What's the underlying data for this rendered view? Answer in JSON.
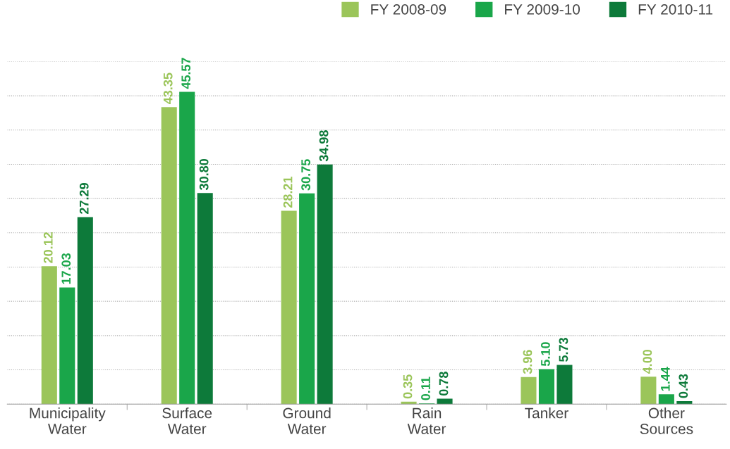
{
  "chart_data": {
    "type": "bar",
    "categories": [
      "Municipality\nWater",
      "Surface\nWater",
      "Ground\nWater",
      "Rain\nWater",
      "Tanker",
      "Other\nSources"
    ],
    "series": [
      {
        "name": "FY 2008-09",
        "color": "#9bc55a",
        "values": [
          20.12,
          43.35,
          28.21,
          0.35,
          3.96,
          4.0
        ],
        "value_labels": [
          "20.12",
          "43.35",
          "28.21",
          "0.35",
          "3.96",
          "4.00"
        ]
      },
      {
        "name": "FY 2009-10",
        "color": "#1aa64a",
        "values": [
          17.03,
          45.57,
          30.75,
          0.11,
          5.1,
          1.44
        ],
        "value_labels": [
          "17.03",
          "45.57",
          "30.75",
          "0.11",
          "5.10",
          "1.44"
        ]
      },
      {
        "name": "FY 2010-11",
        "color": "#0d7a3a",
        "values": [
          27.29,
          30.8,
          34.98,
          0.78,
          5.73,
          0.43
        ],
        "value_labels": [
          "27.29",
          "30.80",
          "34.98",
          "0.78",
          "5.73",
          "0.43"
        ]
      }
    ],
    "ylim": [
      0,
      50
    ],
    "yticks": [
      {
        "value": 0,
        "label": null
      },
      {
        "value": 5,
        "label": null
      },
      {
        "value": 10,
        "label": null
      },
      {
        "value": 15,
        "label": null
      },
      {
        "value": 20,
        "label": null
      },
      {
        "value": 25,
        "label": null
      },
      {
        "value": 30,
        "label": null
      },
      {
        "value": 35,
        "label": null
      },
      {
        "value": 40,
        "label": null
      },
      {
        "value": 45,
        "label": null
      },
      {
        "value": 50,
        "label": null
      }
    ],
    "tick_labels": "x",
    "grid": "y",
    "legend": "top right"
  }
}
